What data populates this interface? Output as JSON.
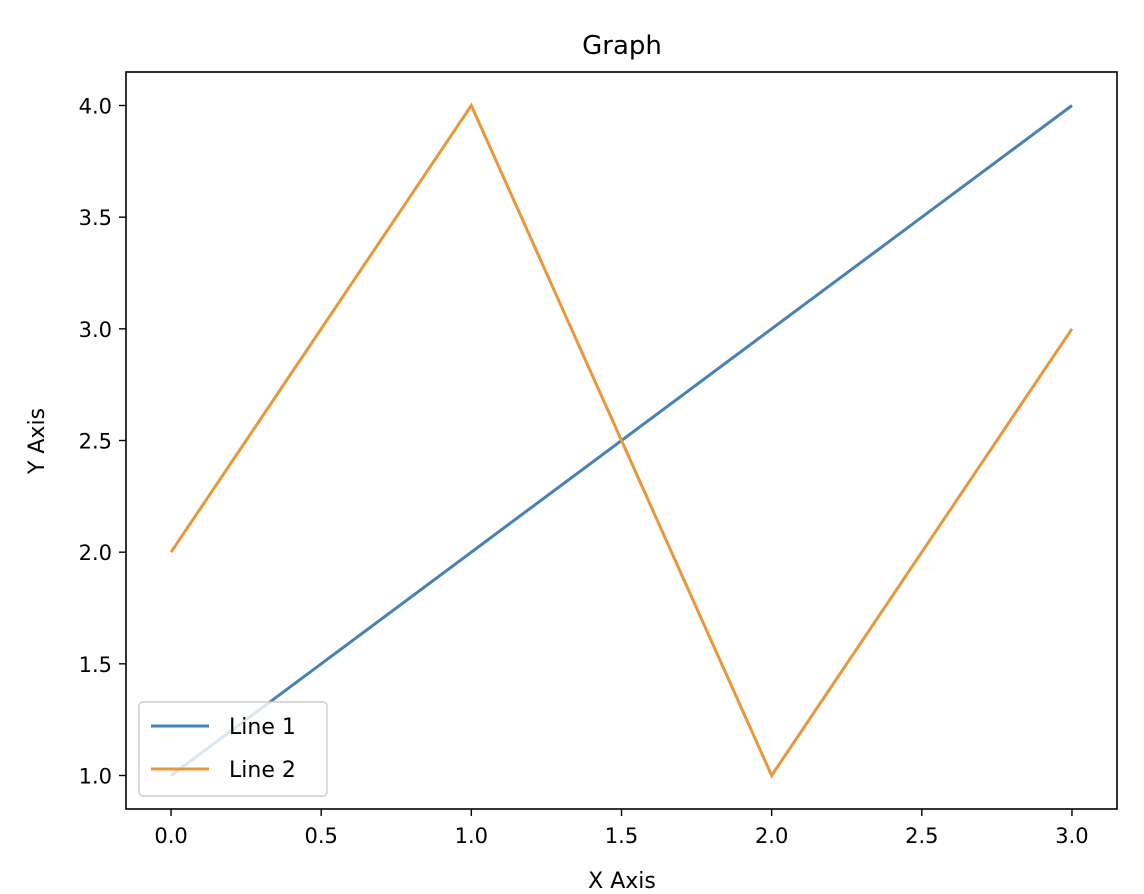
{
  "chart_data": {
    "type": "line",
    "title": "Graph",
    "xlabel": "X Axis",
    "ylabel": "Y Axis",
    "x": [
      0,
      1,
      2,
      3
    ],
    "series": [
      {
        "name": "Line 1",
        "values": [
          1,
          2,
          3,
          4
        ],
        "color": "#4682b4"
      },
      {
        "name": "Line 2",
        "values": [
          2,
          4,
          1,
          3
        ],
        "color": "#e8973a"
      }
    ],
    "xlim": [
      -0.15,
      3.15
    ],
    "ylim": [
      0.85,
      4.15
    ],
    "x_ticks": [
      0.0,
      0.5,
      1.0,
      1.5,
      2.0,
      2.5,
      3.0
    ],
    "x_tick_labels": [
      "0.0",
      "0.5",
      "1.0",
      "1.5",
      "2.0",
      "2.5",
      "3.0"
    ],
    "y_ticks": [
      1.0,
      1.5,
      2.0,
      2.5,
      3.0,
      3.5,
      4.0
    ],
    "y_tick_labels": [
      "1.0",
      "1.5",
      "2.0",
      "2.5",
      "3.0",
      "3.5",
      "4.0"
    ],
    "grid": false,
    "legend_position": "lower-left"
  }
}
